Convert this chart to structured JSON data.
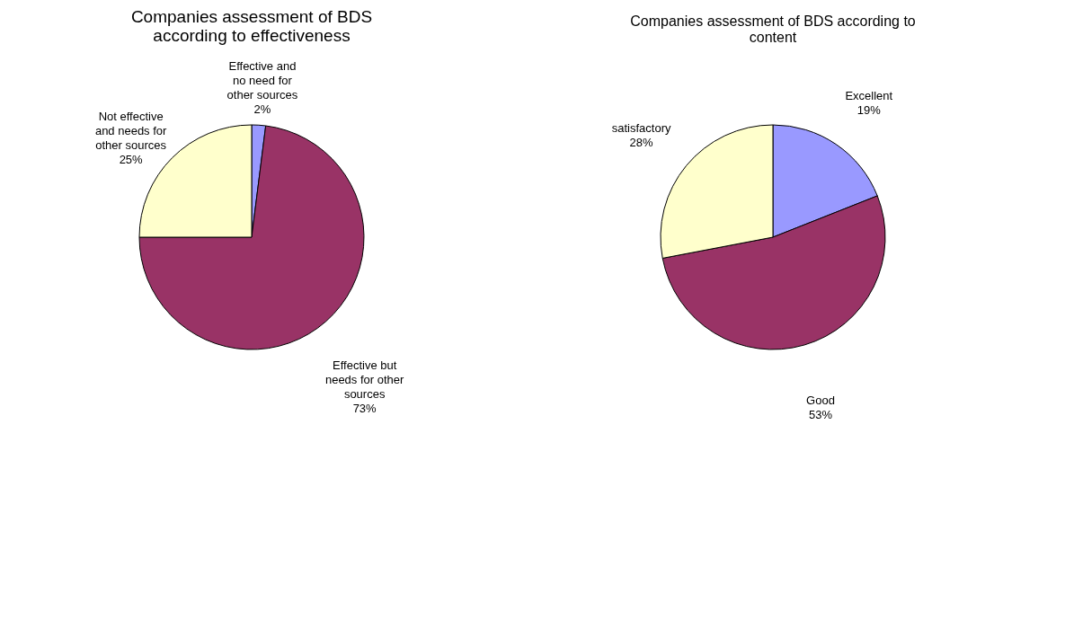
{
  "chart_data": [
    {
      "type": "pie",
      "title": "Companies assessment of BDS according to effectiveness",
      "categories": [
        "Effective and no need for other sources",
        "Effective but needs for other sources",
        "Not effective and needs for other sources"
      ],
      "values": [
        2,
        73,
        25
      ],
      "value_labels": [
        "2%",
        "73%",
        "25%"
      ],
      "colors": [
        "#9999ff",
        "#993366",
        "#ffffcc"
      ],
      "legend": false
    },
    {
      "type": "pie",
      "title": "Companies assessment of BDS according to content",
      "categories": [
        "Excellent",
        "Good",
        "satisfactory"
      ],
      "values": [
        19,
        53,
        28
      ],
      "value_labels": [
        "19%",
        "53%",
        "28%"
      ],
      "colors": [
        "#9999ff",
        "#993366",
        "#ffffcc"
      ],
      "legend": false
    }
  ]
}
